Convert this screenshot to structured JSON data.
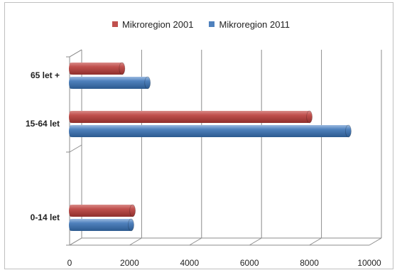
{
  "chart_data": {
    "type": "bar",
    "orientation": "horizontal",
    "style": "3d-cylinder",
    "categories": [
      "0-14 let",
      "15-64 let",
      "65 let +"
    ],
    "series": [
      {
        "name": "Mikroregion 2001",
        "color": "#c0504d",
        "values": [
          2100,
          8000,
          1750
        ]
      },
      {
        "name": "Mikroregion 2011",
        "color": "#4f81bd",
        "values": [
          2050,
          9300,
          2600
        ]
      }
    ],
    "xlim": [
      0,
      10000
    ],
    "xticks": [
      "0",
      "2000",
      "4000",
      "6000",
      "8000",
      "10000"
    ],
    "grid": true,
    "legend_position": "top"
  }
}
